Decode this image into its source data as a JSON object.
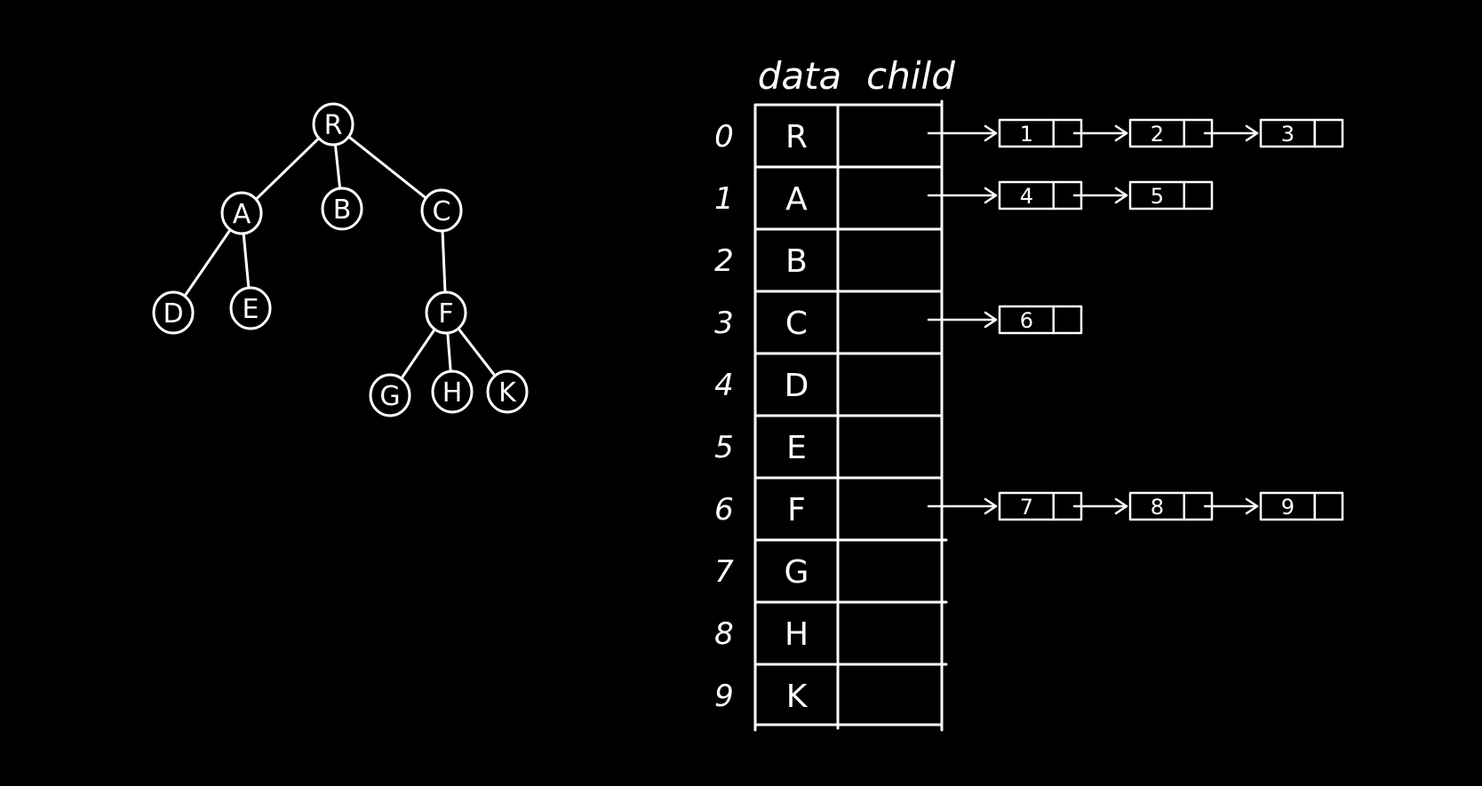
{
  "colors": {
    "background": "#000000",
    "ink": "#ffffff"
  },
  "tree": {
    "nodes": [
      {
        "id": "R",
        "label": "R"
      },
      {
        "id": "A",
        "label": "A"
      },
      {
        "id": "B",
        "label": "B"
      },
      {
        "id": "C",
        "label": "C"
      },
      {
        "id": "D",
        "label": "D"
      },
      {
        "id": "E",
        "label": "E"
      },
      {
        "id": "F",
        "label": "F"
      },
      {
        "id": "G",
        "label": "G"
      },
      {
        "id": "H",
        "label": "H"
      },
      {
        "id": "K",
        "label": "K"
      }
    ],
    "edges": [
      [
        "R",
        "A"
      ],
      [
        "R",
        "B"
      ],
      [
        "R",
        "C"
      ],
      [
        "A",
        "D"
      ],
      [
        "A",
        "E"
      ],
      [
        "C",
        "F"
      ],
      [
        "F",
        "G"
      ],
      [
        "F",
        "H"
      ],
      [
        "F",
        "K"
      ]
    ]
  },
  "table": {
    "header_data": "data",
    "header_child": "child",
    "rows": [
      {
        "index": "0",
        "data": "R",
        "children": [
          "1",
          "2",
          "3"
        ]
      },
      {
        "index": "1",
        "data": "A",
        "children": [
          "4",
          "5"
        ]
      },
      {
        "index": "2",
        "data": "B",
        "children": []
      },
      {
        "index": "3",
        "data": "C",
        "children": [
          "6"
        ]
      },
      {
        "index": "4",
        "data": "D",
        "children": []
      },
      {
        "index": "5",
        "data": "E",
        "children": []
      },
      {
        "index": "6",
        "data": "F",
        "children": [
          "7",
          "8",
          "9"
        ]
      },
      {
        "index": "7",
        "data": "G",
        "children": []
      },
      {
        "index": "8",
        "data": "H",
        "children": []
      },
      {
        "index": "9",
        "data": "K",
        "children": []
      }
    ]
  }
}
